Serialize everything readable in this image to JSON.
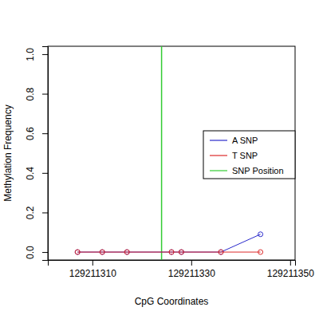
{
  "chart_data": {
    "type": "line",
    "x_label": "CpG Coordinates",
    "y_label": "Methylation Frequency",
    "x": [
      129211307,
      129211312,
      129211317,
      129211326,
      129211328,
      129211336,
      129211344
    ],
    "series": [
      {
        "name": "A SNP",
        "color": "#2a2acc",
        "values": [
          0,
          0,
          0,
          0,
          0,
          0,
          0.09
        ]
      },
      {
        "name": "T SNP",
        "color": "#dd2a2a",
        "values": [
          0,
          0,
          0,
          0,
          0,
          0,
          0
        ]
      }
    ],
    "snp_position": {
      "name": "SNP Position",
      "color": "#33cc33",
      "x": 129211324
    },
    "xlim": [
      129211301,
      129211351
    ],
    "xticks": [
      129211310,
      129211330,
      129211350
    ],
    "ylim": [
      -0.04,
      1.04
    ],
    "yticks": [
      {
        "value": 0,
        "label": "0.0"
      },
      0.2,
      0.4,
      0.6,
      0.8,
      {
        "value": 1,
        "label": "1.0"
      }
    ],
    "marker": "circle",
    "line_style": "solid",
    "legend": "right",
    "grid": false
  }
}
